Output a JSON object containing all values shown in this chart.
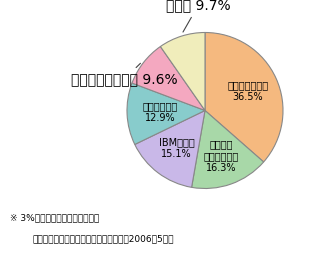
{
  "values": [
    36.5,
    16.3,
    15.1,
    12.9,
    9.6,
    9.7
  ],
  "colors": [
    "#F5B97F",
    "#A8D8A8",
    "#C9B8E8",
    "#88CCCC",
    "#F4A8C0",
    "#F0EDBB"
  ],
  "inner_labels": [
    "オラクル（米）\n36.5%",
    "マイクロ\nソフト（米）\n16.3%",
    "IBM（米）\n15.1%",
    "富士通（日）\n12.9%",
    "",
    ""
  ],
  "outer_label_4": "日立製作所（日） 9.6%",
  "outer_label_5": "その他 9.7%",
  "note1": "※ 3%以上のシェアを有する企業",
  "note2": "（出典）ガートナー　データクエスト（2006年5月）",
  "edge_color": "#888888",
  "startangle": 90
}
